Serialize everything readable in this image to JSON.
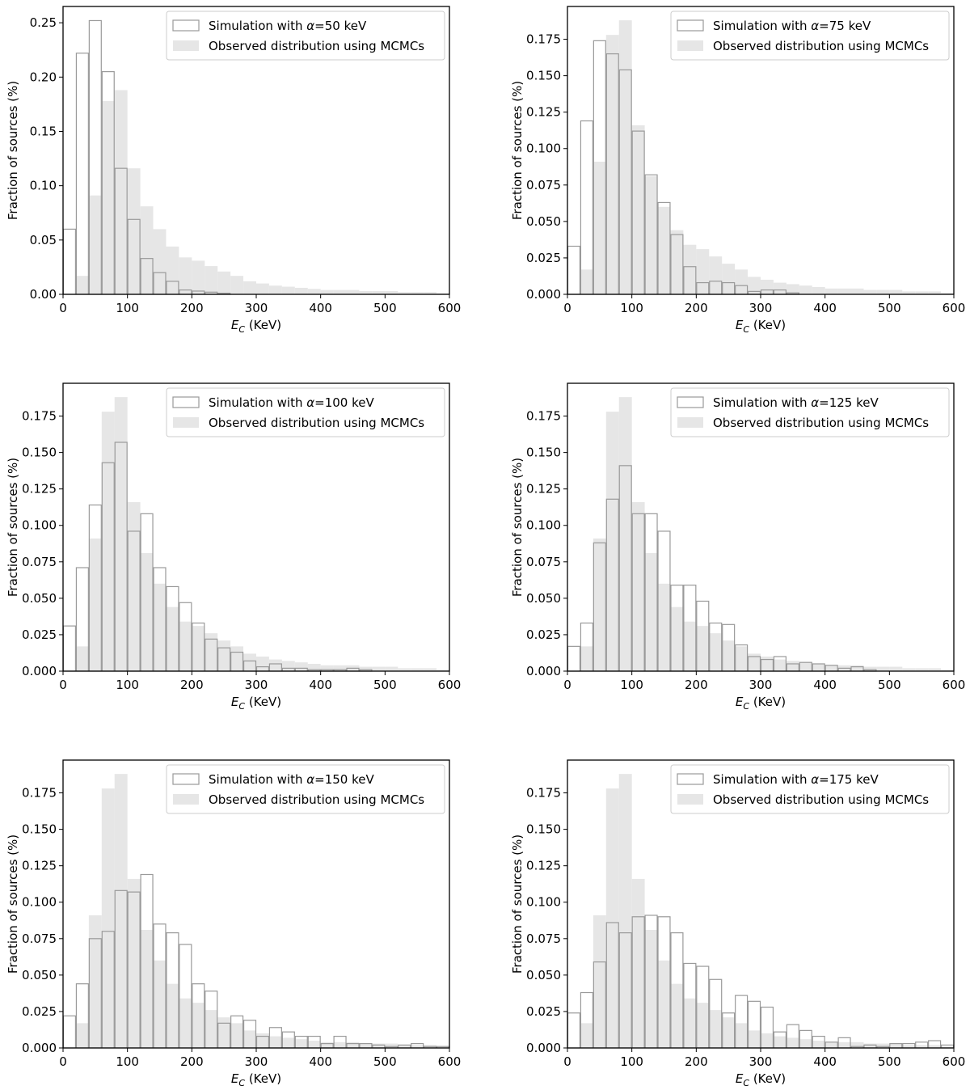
{
  "colors": {
    "observed_fill": "#e6e6e6",
    "simulated_edge": "#9a9a9a",
    "axis": "#000000"
  },
  "chart_data": [
    {
      "type": "bar",
      "bins": {
        "start": 0,
        "width": 20,
        "count": 30
      },
      "xlabel": "E_C (KeV)",
      "ylabel": "Fraction of sources (%)",
      "xlim": [
        0,
        600
      ],
      "ylim": [
        0,
        0.265
      ],
      "xticks": [
        0,
        100,
        200,
        300,
        400,
        500,
        600
      ],
      "yticks": [
        0.0,
        0.05,
        0.1,
        0.15,
        0.2,
        0.25
      ],
      "ytick_labels": [
        "0.00",
        "0.05",
        "0.10",
        "0.15",
        "0.20",
        "0.25"
      ],
      "legend_position": "top-right",
      "series": [
        {
          "name": "Simulation with α=50 keV",
          "style": "step",
          "values": [
            0.06,
            0.222,
            0.252,
            0.205,
            0.116,
            0.069,
            0.033,
            0.02,
            0.012,
            0.004,
            0.003,
            0.002,
            0.001,
            0,
            0,
            0,
            0,
            0,
            0,
            0,
            0,
            0,
            0,
            0,
            0,
            0,
            0,
            0,
            0,
            0
          ]
        },
        {
          "name": "Observed distribution using MCMCs",
          "style": "filled",
          "values": [
            0,
            0.017,
            0.091,
            0.178,
            0.188,
            0.116,
            0.081,
            0.06,
            0.044,
            0.034,
            0.031,
            0.026,
            0.021,
            0.017,
            0.012,
            0.01,
            0.008,
            0.007,
            0.006,
            0.005,
            0.004,
            0.004,
            0.004,
            0.003,
            0.003,
            0.003,
            0.002,
            0.002,
            0.002,
            0.001
          ]
        }
      ]
    },
    {
      "type": "bar",
      "bins": {
        "start": 0,
        "width": 20,
        "count": 30
      },
      "xlabel": "E_C (KeV)",
      "ylabel": "Fraction of sources (%)",
      "xlim": [
        0,
        600
      ],
      "ylim": [
        0,
        0.1975
      ],
      "xticks": [
        0,
        100,
        200,
        300,
        400,
        500,
        600
      ],
      "yticks": [
        0.0,
        0.025,
        0.05,
        0.075,
        0.1,
        0.125,
        0.15,
        0.175
      ],
      "ytick_labels": [
        "0.000",
        "0.025",
        "0.050",
        "0.075",
        "0.100",
        "0.125",
        "0.150",
        "0.175"
      ],
      "legend_position": "top-right",
      "series": [
        {
          "name": "Simulation with α=75 keV",
          "style": "step",
          "values": [
            0.033,
            0.119,
            0.174,
            0.165,
            0.154,
            0.112,
            0.082,
            0.063,
            0.041,
            0.019,
            0.008,
            0.009,
            0.008,
            0.006,
            0.002,
            0.003,
            0.003,
            0.001,
            0,
            0,
            0,
            0,
            0,
            0,
            0,
            0,
            0,
            0,
            0,
            0
          ]
        },
        {
          "name": "Observed distribution using MCMCs",
          "style": "filled",
          "values": [
            0,
            0.017,
            0.091,
            0.178,
            0.188,
            0.116,
            0.081,
            0.06,
            0.044,
            0.034,
            0.031,
            0.026,
            0.021,
            0.017,
            0.012,
            0.01,
            0.008,
            0.007,
            0.006,
            0.005,
            0.004,
            0.004,
            0.004,
            0.003,
            0.003,
            0.003,
            0.002,
            0.002,
            0.002,
            0.001
          ]
        }
      ]
    },
    {
      "type": "bar",
      "bins": {
        "start": 0,
        "width": 20,
        "count": 30
      },
      "xlabel": "E_C (KeV)",
      "ylabel": "Fraction of sources (%)",
      "xlim": [
        0,
        600
      ],
      "ylim": [
        0,
        0.1975
      ],
      "xticks": [
        0,
        100,
        200,
        300,
        400,
        500,
        600
      ],
      "yticks": [
        0.0,
        0.025,
        0.05,
        0.075,
        0.1,
        0.125,
        0.15,
        0.175
      ],
      "ytick_labels": [
        "0.000",
        "0.025",
        "0.050",
        "0.075",
        "0.100",
        "0.125",
        "0.150",
        "0.175"
      ],
      "legend_position": "top-right",
      "series": [
        {
          "name": "Simulation with α=100 keV",
          "style": "step",
          "values": [
            0.031,
            0.071,
            0.114,
            0.143,
            0.157,
            0.096,
            0.108,
            0.071,
            0.058,
            0.047,
            0.033,
            0.022,
            0.016,
            0.013,
            0.007,
            0.003,
            0.005,
            0.002,
            0.002,
            0.001,
            0.001,
            0.001,
            0.002,
            0.001,
            0,
            0,
            0,
            0,
            0,
            0
          ]
        },
        {
          "name": "Observed distribution using MCMCs",
          "style": "filled",
          "values": [
            0,
            0.017,
            0.091,
            0.178,
            0.188,
            0.116,
            0.081,
            0.06,
            0.044,
            0.034,
            0.031,
            0.026,
            0.021,
            0.017,
            0.012,
            0.01,
            0.008,
            0.007,
            0.006,
            0.005,
            0.004,
            0.004,
            0.004,
            0.003,
            0.003,
            0.003,
            0.002,
            0.002,
            0.002,
            0.001
          ]
        }
      ]
    },
    {
      "type": "bar",
      "bins": {
        "start": 0,
        "width": 20,
        "count": 30
      },
      "xlabel": "E_C (KeV)",
      "ylabel": "Fraction of sources (%)",
      "xlim": [
        0,
        600
      ],
      "ylim": [
        0,
        0.1975
      ],
      "xticks": [
        0,
        100,
        200,
        300,
        400,
        500,
        600
      ],
      "yticks": [
        0.0,
        0.025,
        0.05,
        0.075,
        0.1,
        0.125,
        0.15,
        0.175
      ],
      "ytick_labels": [
        "0.000",
        "0.025",
        "0.050",
        "0.075",
        "0.100",
        "0.125",
        "0.150",
        "0.175"
      ],
      "legend_position": "top-right",
      "series": [
        {
          "name": "Simulation with α=125 keV",
          "style": "step",
          "values": [
            0.017,
            0.033,
            0.088,
            0.118,
            0.141,
            0.108,
            0.108,
            0.096,
            0.059,
            0.059,
            0.048,
            0.033,
            0.032,
            0.018,
            0.01,
            0.008,
            0.01,
            0.005,
            0.006,
            0.005,
            0.004,
            0.002,
            0.003,
            0.001,
            0,
            0,
            0,
            0,
            0,
            0
          ]
        },
        {
          "name": "Observed distribution using MCMCs",
          "style": "filled",
          "values": [
            0,
            0.017,
            0.091,
            0.178,
            0.188,
            0.116,
            0.081,
            0.06,
            0.044,
            0.034,
            0.031,
            0.026,
            0.021,
            0.017,
            0.012,
            0.01,
            0.008,
            0.007,
            0.006,
            0.005,
            0.004,
            0.004,
            0.004,
            0.003,
            0.003,
            0.003,
            0.002,
            0.002,
            0.002,
            0.001
          ]
        }
      ]
    },
    {
      "type": "bar",
      "bins": {
        "start": 0,
        "width": 20,
        "count": 30
      },
      "xlabel": "E_C (KeV)",
      "ylabel": "Fraction of sources (%)",
      "xlim": [
        0,
        600
      ],
      "ylim": [
        0,
        0.1975
      ],
      "xticks": [
        0,
        100,
        200,
        300,
        400,
        500,
        600
      ],
      "yticks": [
        0.0,
        0.025,
        0.05,
        0.075,
        0.1,
        0.125,
        0.15,
        0.175
      ],
      "ytick_labels": [
        "0.000",
        "0.025",
        "0.050",
        "0.075",
        "0.100",
        "0.125",
        "0.150",
        "0.175"
      ],
      "legend_position": "top-right",
      "series": [
        {
          "name": "Simulation with α=150 keV",
          "style": "step",
          "values": [
            0.022,
            0.044,
            0.075,
            0.08,
            0.108,
            0.107,
            0.119,
            0.085,
            0.079,
            0.071,
            0.044,
            0.039,
            0.017,
            0.022,
            0.019,
            0.008,
            0.014,
            0.011,
            0.008,
            0.008,
            0.003,
            0.008,
            0.003,
            0.003,
            0.002,
            0.001,
            0.002,
            0.003,
            0.001,
            0.001
          ]
        },
        {
          "name": "Observed distribution using MCMCs",
          "style": "filled",
          "values": [
            0,
            0.017,
            0.091,
            0.178,
            0.188,
            0.116,
            0.081,
            0.06,
            0.044,
            0.034,
            0.031,
            0.026,
            0.021,
            0.017,
            0.012,
            0.01,
            0.008,
            0.007,
            0.006,
            0.005,
            0.004,
            0.004,
            0.004,
            0.003,
            0.003,
            0.003,
            0.002,
            0.002,
            0.002,
            0.001
          ]
        }
      ]
    },
    {
      "type": "bar",
      "bins": {
        "start": 0,
        "width": 20,
        "count": 30
      },
      "xlabel": "E_C (KeV)",
      "ylabel": "Fraction of sources (%)",
      "xlim": [
        0,
        600
      ],
      "ylim": [
        0,
        0.1975
      ],
      "xticks": [
        0,
        100,
        200,
        300,
        400,
        500,
        600
      ],
      "yticks": [
        0.0,
        0.025,
        0.05,
        0.075,
        0.1,
        0.125,
        0.15,
        0.175
      ],
      "ytick_labels": [
        "0.000",
        "0.025",
        "0.050",
        "0.075",
        "0.100",
        "0.125",
        "0.150",
        "0.175"
      ],
      "legend_position": "top-right",
      "series": [
        {
          "name": "Simulation with α=175 keV",
          "style": "step",
          "values": [
            0.024,
            0.038,
            0.059,
            0.086,
            0.079,
            0.09,
            0.091,
            0.09,
            0.079,
            0.058,
            0.056,
            0.047,
            0.024,
            0.036,
            0.032,
            0.028,
            0.011,
            0.016,
            0.012,
            0.008,
            0.004,
            0.007,
            0.001,
            0.002,
            0.001,
            0.003,
            0.003,
            0.004,
            0.005,
            0.002
          ]
        },
        {
          "name": "Observed distribution using MCMCs",
          "style": "filled",
          "values": [
            0,
            0.017,
            0.091,
            0.178,
            0.188,
            0.116,
            0.081,
            0.06,
            0.044,
            0.034,
            0.031,
            0.026,
            0.021,
            0.017,
            0.012,
            0.01,
            0.008,
            0.007,
            0.006,
            0.005,
            0.004,
            0.004,
            0.004,
            0.003,
            0.003,
            0.003,
            0.002,
            0.002,
            0.002,
            0.001
          ]
        }
      ]
    }
  ]
}
